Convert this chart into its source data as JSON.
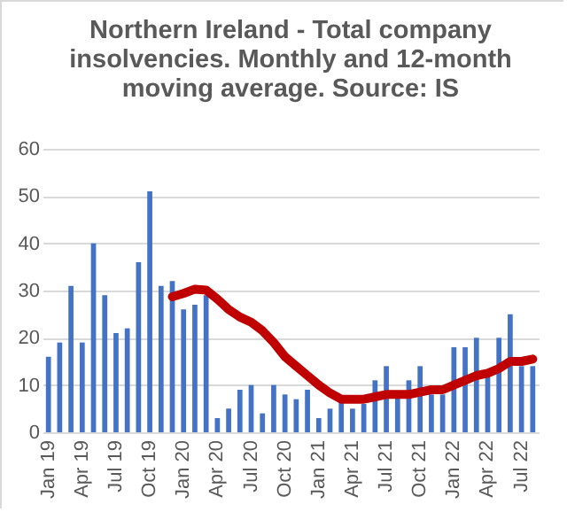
{
  "chart_data": {
    "type": "bar",
    "title": "Northern Ireland - Total company insolvencies. Monthly and 12-month moving average. Source: IS",
    "categories": [
      "Jan 19",
      null,
      null,
      "Apr 19",
      null,
      null,
      "Jul 19",
      null,
      null,
      "Oct 19",
      null,
      null,
      "Jan 20",
      null,
      null,
      "Apr 20",
      null,
      null,
      "Jul 20",
      null,
      null,
      "Oct 20",
      null,
      null,
      "Jan 21",
      null,
      null,
      "Apr 21",
      null,
      null,
      "Jul 21",
      null,
      null,
      "Oct 21",
      null,
      null,
      "Jan 22",
      null,
      null,
      "Apr 22",
      null,
      null,
      "Jul 22",
      null
    ],
    "series": [
      {
        "color": "#4472c4",
        "values": [
          16,
          19,
          31,
          19,
          40,
          29,
          21,
          22,
          36,
          51,
          31,
          32,
          26,
          27,
          29,
          3,
          5,
          9,
          10,
          4,
          10,
          8,
          7,
          9,
          3,
          5,
          7,
          5,
          6,
          11,
          14,
          8,
          11,
          14,
          8,
          8,
          18,
          18,
          20,
          12,
          20,
          25,
          14,
          14
        ]
      },
      {
        "type": "line",
        "color": "#c00000",
        "values": [
          null,
          null,
          null,
          null,
          null,
          null,
          null,
          null,
          null,
          null,
          null,
          28.7,
          29.4,
          30.3,
          30.1,
          28.2,
          26,
          24.4,
          23.3,
          21.5,
          19,
          16,
          14,
          12,
          10,
          8.3,
          7,
          7,
          7,
          7.5,
          8,
          8,
          8,
          8.5,
          9,
          9,
          10,
          11,
          12,
          12.5,
          13.5,
          15,
          15,
          15.5
        ]
      }
    ],
    "ylim": [
      0,
      60
    ],
    "yticks": [
      0,
      10,
      20,
      30,
      40,
      50,
      60
    ],
    "grid": "y"
  }
}
